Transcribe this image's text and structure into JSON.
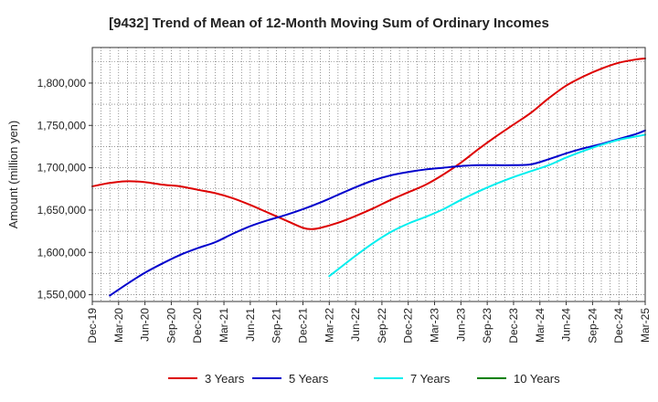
{
  "chart_data": {
    "type": "line",
    "title": "[9432]  Trend of Mean of 12-Month Moving Sum of Ordinary Incomes",
    "xlabel": "",
    "ylabel": "Amount (million yen)",
    "ylim": [
      1542000,
      1842000
    ],
    "y_ticks": [
      1550000,
      1600000,
      1650000,
      1700000,
      1750000,
      1800000
    ],
    "y_tick_labels": [
      "1,550,000",
      "1,600,000",
      "1,650,000",
      "1,700,000",
      "1,750,000",
      "1,800,000"
    ],
    "x_tick_labels": [
      "Dec-19",
      "Mar-20",
      "Jun-20",
      "Sep-20",
      "Dec-20",
      "Mar-21",
      "Jun-21",
      "Sep-21",
      "Dec-21",
      "Mar-22",
      "Jun-22",
      "Sep-22",
      "Dec-22",
      "Mar-23",
      "Jun-23",
      "Sep-23",
      "Dec-23",
      "Mar-24",
      "Jun-24",
      "Sep-24",
      "Dec-24",
      "Mar-25"
    ],
    "x_range_months": [
      0,
      63
    ],
    "grid": true,
    "legend_position": "bottom",
    "series": [
      {
        "name": "3 Years",
        "color": "#dd0000",
        "points": [
          [
            0,
            1678000
          ],
          [
            2,
            1682000
          ],
          [
            4,
            1684000
          ],
          [
            6,
            1683000
          ],
          [
            8,
            1680000
          ],
          [
            10,
            1678000
          ],
          [
            12,
            1674000
          ],
          [
            14,
            1670000
          ],
          [
            16,
            1664000
          ],
          [
            18,
            1656000
          ],
          [
            20,
            1647000
          ],
          [
            22,
            1638000
          ],
          [
            24,
            1629000
          ],
          [
            25,
            1627500
          ],
          [
            26,
            1629000
          ],
          [
            28,
            1635000
          ],
          [
            30,
            1643000
          ],
          [
            32,
            1652000
          ],
          [
            34,
            1662000
          ],
          [
            36,
            1671000
          ],
          [
            38,
            1680000
          ],
          [
            40,
            1692000
          ],
          [
            42,
            1706000
          ],
          [
            44,
            1722000
          ],
          [
            46,
            1737000
          ],
          [
            48,
            1751000
          ],
          [
            50,
            1765000
          ],
          [
            52,
            1782000
          ],
          [
            54,
            1797000
          ],
          [
            56,
            1808000
          ],
          [
            58,
            1817000
          ],
          [
            60,
            1824000
          ],
          [
            62,
            1828000
          ],
          [
            63,
            1829000
          ]
        ]
      },
      {
        "name": "5 Years",
        "color": "#0000cc",
        "points": [
          [
            2,
            1549000
          ],
          [
            4,
            1563000
          ],
          [
            6,
            1576000
          ],
          [
            8,
            1587000
          ],
          [
            10,
            1597000
          ],
          [
            12,
            1605000
          ],
          [
            14,
            1612000
          ],
          [
            16,
            1622000
          ],
          [
            18,
            1631000
          ],
          [
            20,
            1638000
          ],
          [
            22,
            1644000
          ],
          [
            24,
            1651000
          ],
          [
            26,
            1659000
          ],
          [
            28,
            1668000
          ],
          [
            30,
            1677000
          ],
          [
            32,
            1685000
          ],
          [
            34,
            1691000
          ],
          [
            36,
            1695000
          ],
          [
            38,
            1698000
          ],
          [
            40,
            1700000
          ],
          [
            42,
            1702000
          ],
          [
            44,
            1703000
          ],
          [
            46,
            1703000
          ],
          [
            48,
            1703000
          ],
          [
            50,
            1704000
          ],
          [
            52,
            1710000
          ],
          [
            54,
            1717000
          ],
          [
            56,
            1723000
          ],
          [
            58,
            1728000
          ],
          [
            60,
            1734000
          ],
          [
            62,
            1740000
          ],
          [
            63,
            1744000
          ]
        ]
      },
      {
        "name": "7 Years",
        "color": "#00eeee",
        "points": [
          [
            27,
            1572000
          ],
          [
            28,
            1580000
          ],
          [
            30,
            1596000
          ],
          [
            32,
            1611000
          ],
          [
            34,
            1624000
          ],
          [
            36,
            1634000
          ],
          [
            38,
            1642000
          ],
          [
            40,
            1651000
          ],
          [
            42,
            1662000
          ],
          [
            44,
            1672000
          ],
          [
            46,
            1681000
          ],
          [
            48,
            1689000
          ],
          [
            50,
            1696000
          ],
          [
            52,
            1703000
          ],
          [
            54,
            1712000
          ],
          [
            56,
            1720000
          ],
          [
            58,
            1727000
          ],
          [
            60,
            1733000
          ],
          [
            62,
            1737000
          ],
          [
            63,
            1739000
          ]
        ]
      },
      {
        "name": "10 Years",
        "color": "#008000",
        "points": []
      }
    ]
  }
}
